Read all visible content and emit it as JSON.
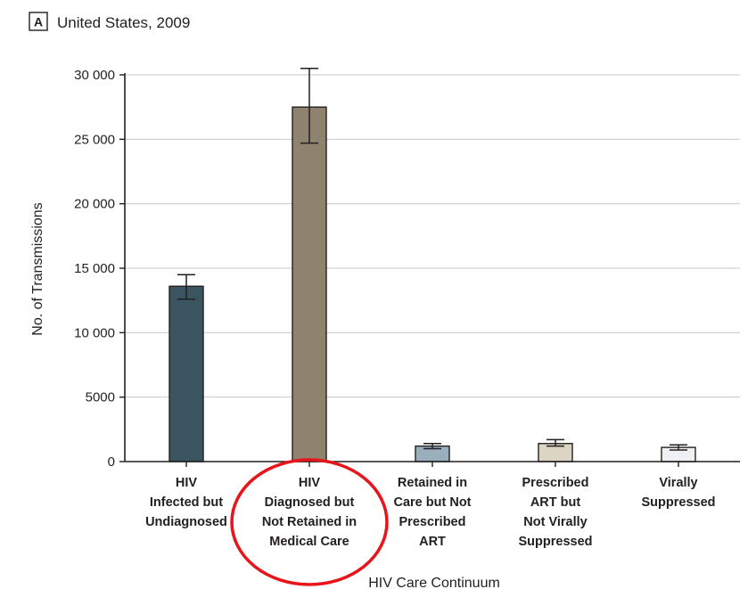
{
  "panel": {
    "letter": "A",
    "title": "United States, 2009"
  },
  "chart_data": {
    "type": "bar",
    "title": "United States, 2009",
    "xlabel": "HIV Care Continuum",
    "ylabel": "No. of Transmissions",
    "ylim": [
      0,
      30000
    ],
    "yticks": [
      0,
      5000,
      10000,
      15000,
      20000,
      25000,
      30000
    ],
    "ytick_labels": [
      "0",
      "5000",
      "10 000",
      "15 000",
      "20 000",
      "25 000",
      "30 000"
    ],
    "grid": true,
    "categories": [
      [
        "HIV",
        "Infected but",
        "Undiagnosed"
      ],
      [
        "HIV",
        "Diagnosed but",
        "Not Retained in",
        "Medical Care"
      ],
      [
        "Retained in",
        "Care but Not",
        "Prescribed",
        "ART"
      ],
      [
        "Prescribed",
        "ART but",
        "Not Virally",
        "Suppressed"
      ],
      [
        "Virally",
        "Suppressed"
      ]
    ],
    "values": [
      13600,
      27500,
      1200,
      1400,
      1100
    ],
    "error_low": [
      12600,
      24700,
      1000,
      1200,
      900
    ],
    "error_high": [
      14500,
      30500,
      1400,
      1700,
      1300
    ],
    "colors": [
      "#3b5560",
      "#8f836f",
      "#99afbc",
      "#ddd5c4",
      "#eef0f4"
    ],
    "highlight": {
      "category_index": 1,
      "shape": "circle",
      "color": "#e8141b"
    }
  }
}
